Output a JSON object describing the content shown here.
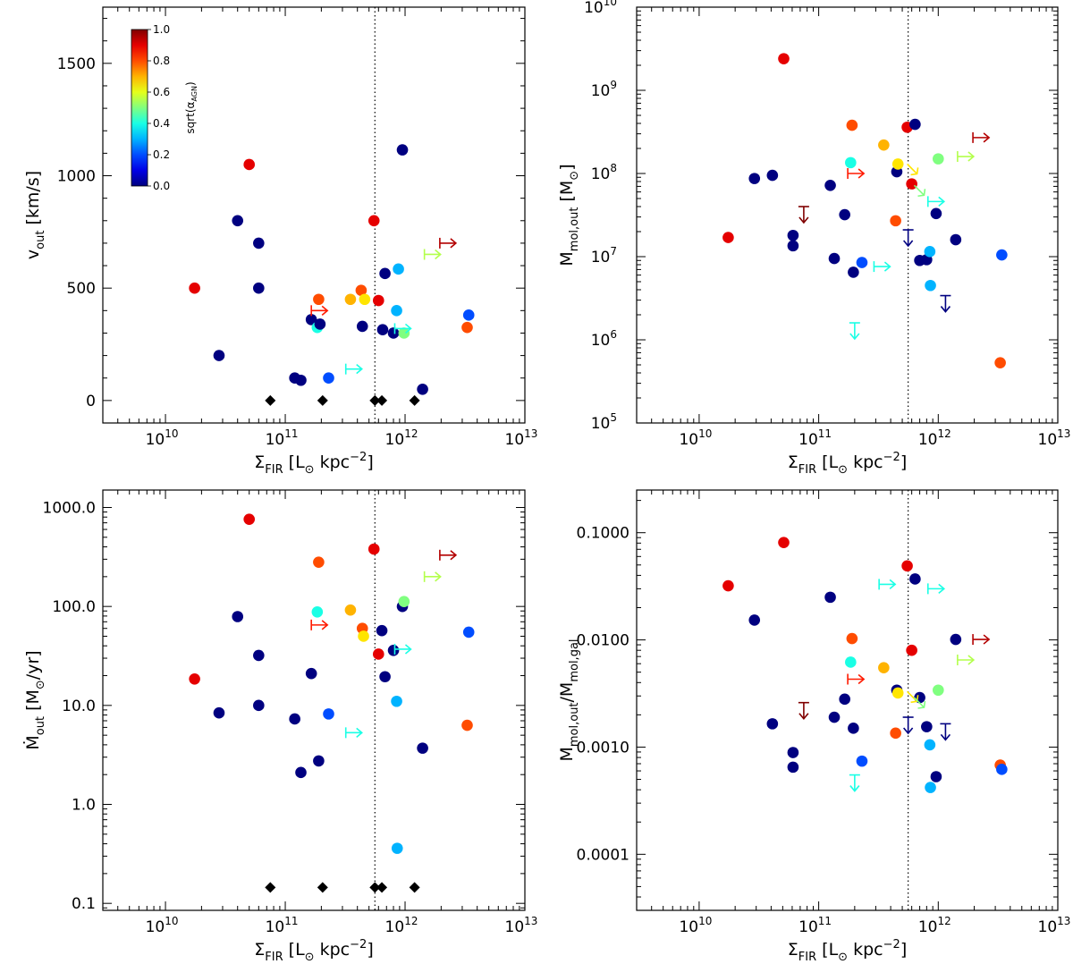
{
  "chart_data": [
    {
      "type": "scatter",
      "id": "top-left",
      "xlabel": "Σ_FIR [L_⊙ kpc^-2]",
      "ylabel": "v_out [km/s]",
      "x_log": true,
      "y_log": false,
      "xlim": [
        3000000000.0,
        10000000000000.0
      ],
      "ylim": [
        -100,
        1750
      ],
      "xticks": [
        10000000000.0,
        100000000000.0,
        1000000000000.0,
        10000000000000.0
      ],
      "yticks": [
        0,
        500,
        1000,
        1500
      ],
      "ytick_labels": [
        "0",
        "500",
        "1000",
        "1500"
      ],
      "vline_x": 560000000000.0,
      "colorbar": {
        "label": "sqrt(α_AGN)",
        "min": 0.0,
        "max": 1.0,
        "ticks": [
          "0.0",
          "0.2",
          "0.4",
          "0.6",
          "0.8",
          "1.0"
        ]
      },
      "points": [
        {
          "x": 17500000000.0,
          "y": 500,
          "c": 0.9
        },
        {
          "x": 28000000000.0,
          "y": 200,
          "c": 0.0
        },
        {
          "x": 40000000000.0,
          "y": 800,
          "c": 0.0
        },
        {
          "x": 50000000000.0,
          "y": 1050,
          "c": 0.9
        },
        {
          "x": 60000000000.0,
          "y": 700,
          "c": 0.0
        },
        {
          "x": 60000000000.0,
          "y": 500,
          "c": 0.0
        },
        {
          "x": 120000000000.0,
          "y": 100,
          "c": 0.0
        },
        {
          "x": 135000000000.0,
          "y": 90,
          "c": 0.0
        },
        {
          "x": 165000000000.0,
          "y": 360,
          "c": 0.0
        },
        {
          "x": 185000000000.0,
          "y": 325,
          "c": 0.4
        },
        {
          "x": 190000000000.0,
          "y": 450,
          "c": 0.8
        },
        {
          "x": 195000000000.0,
          "y": 340,
          "c": 0.0
        },
        {
          "x": 230000000000.0,
          "y": 100,
          "c": 0.2
        },
        {
          "x": 350000000000.0,
          "y": 450,
          "c": 0.7
        },
        {
          "x": 430000000000.0,
          "y": 490,
          "c": 0.8
        },
        {
          "x": 440000000000.0,
          "y": 330,
          "c": 0.0
        },
        {
          "x": 460000000000.0,
          "y": 450,
          "c": 0.65
        },
        {
          "x": 550000000000.0,
          "y": 800,
          "c": 0.9
        },
        {
          "x": 600000000000.0,
          "y": 445,
          "c": 0.9
        },
        {
          "x": 650000000000.0,
          "y": 315,
          "c": 0.0
        },
        {
          "x": 680000000000.0,
          "y": 565,
          "c": 0.0
        },
        {
          "x": 800000000000.0,
          "y": 300,
          "c": 0.0
        },
        {
          "x": 850000000000.0,
          "y": 400,
          "c": 0.3
        },
        {
          "x": 880000000000.0,
          "y": 585,
          "c": 0.3
        },
        {
          "x": 950000000000.0,
          "y": 1115,
          "c": 0.0
        },
        {
          "x": 980000000000.0,
          "y": 300,
          "c": 0.5
        },
        {
          "x": 1400000000000.0,
          "y": 50,
          "c": 0.0
        },
        {
          "x": 3300000000000.0,
          "y": 325,
          "c": 0.8
        },
        {
          "x": 3400000000000.0,
          "y": 380,
          "c": 0.2
        }
      ],
      "limits": [
        {
          "x": 165000000000.0,
          "y": 400,
          "c": 0.85,
          "dir": "right"
        },
        {
          "x": 320000000000.0,
          "y": 140,
          "c": 0.4,
          "dir": "right"
        },
        {
          "x": 820000000000.0,
          "y": 320,
          "c": 0.4,
          "dir": "right"
        },
        {
          "x": 1450000000000.0,
          "y": 650,
          "c": 0.55,
          "dir": "right"
        },
        {
          "x": 1950000000000.0,
          "y": 700,
          "c": 0.95,
          "dir": "right"
        }
      ],
      "diamonds": [
        {
          "x": 75000000000.0,
          "y": 0
        },
        {
          "x": 205000000000.0,
          "y": 0
        },
        {
          "x": 560000000000.0,
          "y": 0
        },
        {
          "x": 640000000000.0,
          "y": 0
        },
        {
          "x": 1200000000000.0,
          "y": 0
        }
      ]
    },
    {
      "type": "scatter",
      "id": "top-right",
      "xlabel": "Σ_FIR [L_⊙ kpc^-2]",
      "ylabel": "M_mol,out [M_⊙]",
      "x_log": true,
      "y_log": true,
      "xlim": [
        3000000000.0,
        10000000000000.0
      ],
      "ylim": [
        100000.0,
        10000000000.0
      ],
      "xticks": [
        10000000000.0,
        100000000000.0,
        1000000000000.0,
        10000000000000.0
      ],
      "yticks": [
        100000.0,
        1000000.0,
        10000000.0,
        100000000.0,
        1000000000.0,
        10000000000.0
      ],
      "vline_x": 560000000000.0,
      "points": [
        {
          "x": 17500000000.0,
          "y": 17000000.0,
          "c": 0.9
        },
        {
          "x": 29000000000.0,
          "y": 87000000.0,
          "c": 0.0
        },
        {
          "x": 41000000000.0,
          "y": 95000000.0,
          "c": 0.0
        },
        {
          "x": 51000000000.0,
          "y": 2400000000.0,
          "c": 0.9
        },
        {
          "x": 61000000000.0,
          "y": 18000000.0,
          "c": 0.0
        },
        {
          "x": 61000000000.0,
          "y": 13500000.0,
          "c": 0.0
        },
        {
          "x": 125000000000.0,
          "y": 72000000.0,
          "c": 0.0
        },
        {
          "x": 135000000000.0,
          "y": 9500000.0,
          "c": 0.0
        },
        {
          "x": 165000000000.0,
          "y": 32000000.0,
          "c": 0.0
        },
        {
          "x": 185000000000.0,
          "y": 135000000.0,
          "c": 0.4
        },
        {
          "x": 190000000000.0,
          "y": 380000000.0,
          "c": 0.8
        },
        {
          "x": 195000000000.0,
          "y": 6500000.0,
          "c": 0.0
        },
        {
          "x": 230000000000.0,
          "y": 8500000.0,
          "c": 0.2
        },
        {
          "x": 350000000000.0,
          "y": 220000000.0,
          "c": 0.7
        },
        {
          "x": 440000000000.0,
          "y": 27000000.0,
          "c": 0.8
        },
        {
          "x": 450000000000.0,
          "y": 105000000.0,
          "c": 0.0
        },
        {
          "x": 460000000000.0,
          "y": 130000000.0,
          "c": 0.65
        },
        {
          "x": 550000000000.0,
          "y": 360000000.0,
          "c": 0.9
        },
        {
          "x": 600000000000.0,
          "y": 75000000.0,
          "c": 0.9
        },
        {
          "x": 640000000000.0,
          "y": 390000000.0,
          "c": 0.0
        },
        {
          "x": 700000000000.0,
          "y": 9000000.0,
          "c": 0.0
        },
        {
          "x": 800000000000.0,
          "y": 9200000.0,
          "c": 0.0
        },
        {
          "x": 850000000000.0,
          "y": 11500000.0,
          "c": 0.3
        },
        {
          "x": 860000000000.0,
          "y": 4500000.0,
          "c": 0.3
        },
        {
          "x": 960000000000.0,
          "y": 33000000.0,
          "c": 0.0
        },
        {
          "x": 1000000000000.0,
          "y": 150000000.0,
          "c": 0.5
        },
        {
          "x": 1400000000000.0,
          "y": 16000000.0,
          "c": 0.0
        },
        {
          "x": 3300000000000.0,
          "y": 530000.0,
          "c": 0.8
        },
        {
          "x": 3400000000000.0,
          "y": 10500000.0,
          "c": 0.2
        }
      ],
      "limits": [
        {
          "x": 175000000000.0,
          "y": 100000000.0,
          "c": 0.85,
          "dir": "right"
        },
        {
          "x": 290000000000.0,
          "y": 7600000.0,
          "c": 0.4,
          "dir": "right"
        },
        {
          "x": 820000000000.0,
          "y": 46000000.0,
          "c": 0.4,
          "dir": "right"
        },
        {
          "x": 1450000000000.0,
          "y": 160000000.0,
          "c": 0.55,
          "dir": "right"
        },
        {
          "x": 1950000000000.0,
          "y": 270000000.0,
          "c": 0.95,
          "dir": "right"
        },
        {
          "x": 75000000000.0,
          "y": 40000000.0,
          "c": 1.0,
          "dir": "down"
        },
        {
          "x": 200000000000.0,
          "y": 1600000.0,
          "c": 0.4,
          "dir": "down"
        },
        {
          "x": 560000000000.0,
          "y": 21000000.0,
          "c": 0.0,
          "dir": "down"
        },
        {
          "x": 1150000000000.0,
          "y": 3400000.0,
          "c": 0.0,
          "dir": "down"
        },
        {
          "x": 550000000000.0,
          "y": 130000000.0,
          "c": 0.65,
          "dir": "diag"
        },
        {
          "x": 630000000000.0,
          "y": 72000000.0,
          "c": 0.5,
          "dir": "diag"
        }
      ],
      "diamonds": []
    },
    {
      "type": "scatter",
      "id": "bottom-left",
      "xlabel": "Σ_FIR [L_⊙ kpc^-2]",
      "ylabel": "Ṁ_out [M_⊙/yr]",
      "x_log": true,
      "y_log": true,
      "xlim": [
        3000000000.0,
        10000000000000.0
      ],
      "ylim": [
        0.085,
        1500
      ],
      "xticks": [
        10000000000.0,
        100000000000.0,
        1000000000000.0,
        10000000000000.0
      ],
      "yticks": [
        0.1,
        1,
        10,
        100,
        1000
      ],
      "ytick_labels": [
        "0.1",
        "1.0",
        "10.0",
        "100.0",
        "1000.0"
      ],
      "vline_x": 560000000000.0,
      "points": [
        {
          "x": 17500000000.0,
          "y": 18.5,
          "c": 0.9
        },
        {
          "x": 28000000000.0,
          "y": 8.4,
          "c": 0.0
        },
        {
          "x": 40000000000.0,
          "y": 79,
          "c": 0.0
        },
        {
          "x": 50000000000.0,
          "y": 760,
          "c": 0.9
        },
        {
          "x": 60000000000.0,
          "y": 32,
          "c": 0.0
        },
        {
          "x": 60000000000.0,
          "y": 10,
          "c": 0.0
        },
        {
          "x": 120000000000.0,
          "y": 7.3,
          "c": 0.0
        },
        {
          "x": 135000000000.0,
          "y": 2.1,
          "c": 0.0
        },
        {
          "x": 165000000000.0,
          "y": 21,
          "c": 0.0
        },
        {
          "x": 185000000000.0,
          "y": 88,
          "c": 0.4
        },
        {
          "x": 190000000000.0,
          "y": 280,
          "c": 0.8
        },
        {
          "x": 190000000000.0,
          "y": 2.75,
          "c": 0.0
        },
        {
          "x": 230000000000.0,
          "y": 8.2,
          "c": 0.2
        },
        {
          "x": 350000000000.0,
          "y": 92,
          "c": 0.7
        },
        {
          "x": 440000000000.0,
          "y": 60,
          "c": 0.8
        },
        {
          "x": 450000000000.0,
          "y": 50,
          "c": 0.65
        },
        {
          "x": 550000000000.0,
          "y": 380,
          "c": 0.9
        },
        {
          "x": 600000000000.0,
          "y": 33,
          "c": 0.9
        },
        {
          "x": 640000000000.0,
          "y": 57,
          "c": 0.0
        },
        {
          "x": 680000000000.0,
          "y": 19.5,
          "c": 0.0
        },
        {
          "x": 800000000000.0,
          "y": 36,
          "c": 0.0
        },
        {
          "x": 850000000000.0,
          "y": 11,
          "c": 0.3
        },
        {
          "x": 860000000000.0,
          "y": 0.36,
          "c": 0.3
        },
        {
          "x": 950000000000.0,
          "y": 100,
          "c": 0.0
        },
        {
          "x": 980000000000.0,
          "y": 112,
          "c": 0.5
        },
        {
          "x": 1400000000000.0,
          "y": 3.7,
          "c": 0.0
        },
        {
          "x": 3300000000000.0,
          "y": 6.3,
          "c": 0.8
        },
        {
          "x": 3400000000000.0,
          "y": 55,
          "c": 0.2
        }
      ],
      "limits": [
        {
          "x": 165000000000.0,
          "y": 65,
          "c": 0.85,
          "dir": "right"
        },
        {
          "x": 320000000000.0,
          "y": 5.3,
          "c": 0.4,
          "dir": "right"
        },
        {
          "x": 820000000000.0,
          "y": 37,
          "c": 0.4,
          "dir": "right"
        },
        {
          "x": 1450000000000.0,
          "y": 200,
          "c": 0.55,
          "dir": "right"
        },
        {
          "x": 1950000000000.0,
          "y": 330,
          "c": 0.95,
          "dir": "right"
        }
      ],
      "diamonds": [
        {
          "x": 75000000000.0,
          "y": 0.145
        },
        {
          "x": 205000000000.0,
          "y": 0.145
        },
        {
          "x": 560000000000.0,
          "y": 0.145
        },
        {
          "x": 640000000000.0,
          "y": 0.145
        },
        {
          "x": 1200000000000.0,
          "y": 0.145
        }
      ]
    },
    {
      "type": "scatter",
      "id": "bottom-right",
      "xlabel": "Σ_FIR [L_⊙ kpc^-2]",
      "ylabel": "M_mol,out/M_mol,gal",
      "x_log": true,
      "y_log": true,
      "xlim": [
        3000000000.0,
        10000000000000.0
      ],
      "ylim": [
        3e-05,
        0.25
      ],
      "xticks": [
        10000000000.0,
        100000000000.0,
        1000000000000.0,
        10000000000000.0
      ],
      "yticks": [
        0.0001,
        0.001,
        0.01,
        0.1
      ],
      "ytick_labels": [
        "0.0001",
        "0.0010",
        "0.0100",
        "0.1000"
      ],
      "vline_x": 560000000000.0,
      "points": [
        {
          "x": 17500000000.0,
          "y": 0.032,
          "c": 0.9
        },
        {
          "x": 29000000000.0,
          "y": 0.0153,
          "c": 0.0
        },
        {
          "x": 41000000000.0,
          "y": 0.00165,
          "c": 0.0
        },
        {
          "x": 51000000000.0,
          "y": 0.081,
          "c": 0.9
        },
        {
          "x": 61000000000.0,
          "y": 0.00089,
          "c": 0.0
        },
        {
          "x": 61000000000.0,
          "y": 0.00065,
          "c": 0.0
        },
        {
          "x": 125000000000.0,
          "y": 0.025,
          "c": 0.0
        },
        {
          "x": 135000000000.0,
          "y": 0.0019,
          "c": 0.0
        },
        {
          "x": 165000000000.0,
          "y": 0.0028,
          "c": 0.0
        },
        {
          "x": 185000000000.0,
          "y": 0.0062,
          "c": 0.4
        },
        {
          "x": 190000000000.0,
          "y": 0.0103,
          "c": 0.8
        },
        {
          "x": 195000000000.0,
          "y": 0.0015,
          "c": 0.0
        },
        {
          "x": 230000000000.0,
          "y": 0.00074,
          "c": 0.2
        },
        {
          "x": 350000000000.0,
          "y": 0.0055,
          "c": 0.7
        },
        {
          "x": 440000000000.0,
          "y": 0.00135,
          "c": 0.8
        },
        {
          "x": 450000000000.0,
          "y": 0.0034,
          "c": 0.0
        },
        {
          "x": 460000000000.0,
          "y": 0.0032,
          "c": 0.65
        },
        {
          "x": 550000000000.0,
          "y": 0.049,
          "c": 0.9
        },
        {
          "x": 600000000000.0,
          "y": 0.008,
          "c": 0.9
        },
        {
          "x": 640000000000.0,
          "y": 0.037,
          "c": 0.0
        },
        {
          "x": 700000000000.0,
          "y": 0.0029,
          "c": 0.0
        },
        {
          "x": 800000000000.0,
          "y": 0.00155,
          "c": 0.0
        },
        {
          "x": 850000000000.0,
          "y": 0.00105,
          "c": 0.3
        },
        {
          "x": 860000000000.0,
          "y": 0.00042,
          "c": 0.3
        },
        {
          "x": 960000000000.0,
          "y": 0.00053,
          "c": 0.0
        },
        {
          "x": 1000000000000.0,
          "y": 0.0034,
          "c": 0.5
        },
        {
          "x": 1400000000000.0,
          "y": 0.0101,
          "c": 0.0
        },
        {
          "x": 3300000000000.0,
          "y": 0.00068,
          "c": 0.8
        },
        {
          "x": 3400000000000.0,
          "y": 0.00062,
          "c": 0.2
        }
      ],
      "limits": [
        {
          "x": 175000000000.0,
          "y": 0.0043,
          "c": 0.85,
          "dir": "right"
        },
        {
          "x": 320000000000.0,
          "y": 0.033,
          "c": 0.4,
          "dir": "right"
        },
        {
          "x": 820000000000.0,
          "y": 0.03,
          "c": 0.4,
          "dir": "right"
        },
        {
          "x": 1450000000000.0,
          "y": 0.0065,
          "c": 0.55,
          "dir": "right"
        },
        {
          "x": 1950000000000.0,
          "y": 0.0101,
          "c": 0.95,
          "dir": "right"
        },
        {
          "x": 75000000000.0,
          "y": 0.0026,
          "c": 1.0,
          "dir": "down"
        },
        {
          "x": 200000000000.0,
          "y": 0.00055,
          "c": 0.4,
          "dir": "down"
        },
        {
          "x": 560000000000.0,
          "y": 0.0019,
          "c": 0.0,
          "dir": "down"
        },
        {
          "x": 1150000000000.0,
          "y": 0.00165,
          "c": 0.0,
          "dir": "down"
        },
        {
          "x": 550000000000.0,
          "y": 0.0033,
          "c": 0.65,
          "dir": "diag"
        },
        {
          "x": 630000000000.0,
          "y": 0.0029,
          "c": 0.5,
          "dir": "diag"
        }
      ],
      "diamonds": []
    }
  ]
}
